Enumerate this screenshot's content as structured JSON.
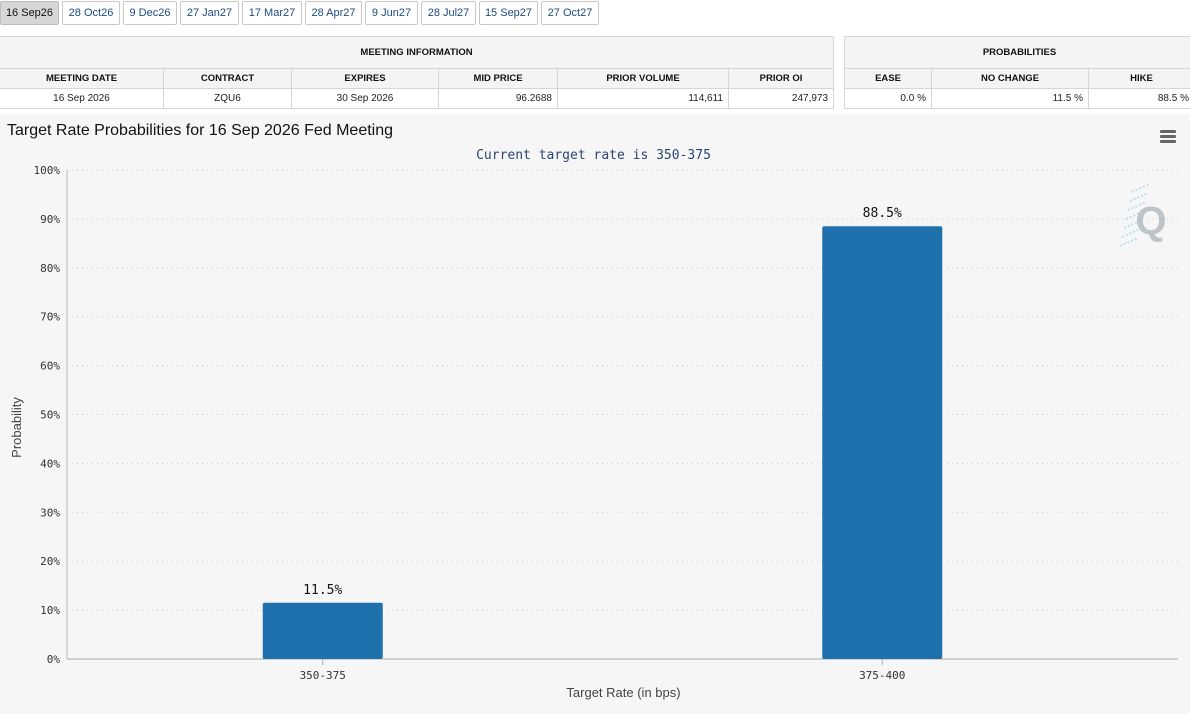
{
  "tabs": [
    {
      "label": "16 Sep26",
      "active": true
    },
    {
      "label": "28 Oct26"
    },
    {
      "label": "9 Dec26"
    },
    {
      "label": "27 Jan27"
    },
    {
      "label": "17 Mar27"
    },
    {
      "label": "28 Apr27"
    },
    {
      "label": "9 Jun27"
    },
    {
      "label": "28 Jul27"
    },
    {
      "label": "15 Sep27"
    },
    {
      "label": "27 Oct27"
    }
  ],
  "meeting_info": {
    "header": "MEETING INFORMATION",
    "columns": [
      "MEETING DATE",
      "CONTRACT",
      "EXPIRES",
      "MID PRICE",
      "PRIOR VOLUME",
      "PRIOR OI"
    ],
    "row": [
      "16 Sep 2026",
      "ZQU6",
      "30 Sep 2026",
      "96.2688",
      "114,611",
      "247,973"
    ]
  },
  "probabilities": {
    "header": "PROBABILITIES",
    "columns": [
      "EASE",
      "NO CHANGE",
      "HIKE"
    ],
    "row": [
      "0.0 %",
      "11.5 %",
      "88.5 %"
    ]
  },
  "chart": {
    "menu_icon": "hamburger-menu-icon",
    "watermark": "Q",
    "bar_color": "#1f71ad"
  },
  "chart_data": {
    "type": "bar",
    "title": "Target Rate Probabilities for 16 Sep 2026 Fed Meeting",
    "subtitle": "Current target rate is 350-375",
    "xlabel": "Target Rate (in bps)",
    "ylabel": "Probability",
    "categories": [
      "350-375",
      "375-400"
    ],
    "values": [
      11.5,
      88.5
    ],
    "data_labels": [
      "11.5%",
      "88.5%"
    ],
    "ylim": [
      0,
      100
    ],
    "yticks": [
      "0%",
      "10%",
      "20%",
      "30%",
      "40%",
      "50%",
      "60%",
      "70%",
      "80%",
      "90%",
      "100%"
    ],
    "grid": true,
    "legend": "none"
  }
}
